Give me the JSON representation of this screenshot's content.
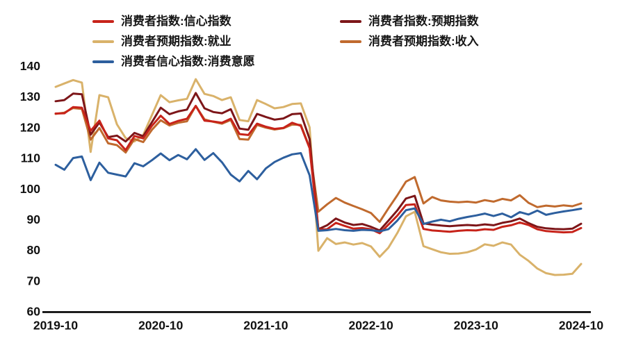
{
  "chart_data": {
    "type": "line",
    "title": "",
    "xlabel": "",
    "ylabel": "",
    "grid": false,
    "legend_position": "top",
    "background": "#ffffff",
    "axis_color": "#000000",
    "x_start": "2019-10",
    "x_end": "2024-10",
    "x_interval": "monthly",
    "points_per_series": 61,
    "x_tick_labels": [
      "2019-10",
      "2020-10",
      "2021-10",
      "2022-10",
      "2023-10",
      "2024-10"
    ],
    "x_tick_month_index": [
      0,
      12,
      24,
      36,
      48,
      60
    ],
    "y_ticks": [
      60,
      70,
      80,
      90,
      100,
      110,
      120,
      130,
      140
    ],
    "ylim": [
      60,
      143
    ],
    "series": [
      {
        "name": "消费者指数:信心指数",
        "color": "#c7231a",
        "legend_row": 1,
        "legend_col": 1,
        "z": 4,
        "values": [
          124.5,
          124.6,
          126.6,
          126.4,
          118.9,
          122.2,
          116.4,
          115.8,
          112.6,
          117.2,
          116.4,
          120.5,
          123.8,
          121.1,
          122.1,
          122.8,
          127.0,
          122.2,
          121.9,
          121.5,
          122.8,
          117.8,
          117.5,
          121.2,
          120.2,
          119.5,
          119.8,
          121.5,
          120.5,
          113.2,
          86.7,
          86.8,
          88.9,
          87.9,
          87.0,
          87.2,
          86.8,
          85.5,
          88.3,
          91.2,
          94.7,
          94.9,
          86.9,
          86.4,
          86.2,
          86.0,
          86.3,
          86.5,
          86.4,
          86.8,
          86.6,
          87.6,
          88.1,
          89.0,
          88.2,
          86.8,
          86.2,
          86.0,
          85.8,
          85.9,
          87.2
        ]
      },
      {
        "name": "消费者指数:预期指数",
        "color": "#7d1619",
        "legend_row": 1,
        "legend_col": 2,
        "z": 3,
        "values": [
          128.5,
          128.9,
          131.0,
          130.8,
          117.6,
          121.6,
          116.8,
          117.3,
          115.4,
          118.2,
          117.1,
          121.7,
          126.4,
          124.3,
          125.2,
          125.8,
          131.2,
          126.2,
          125.0,
          124.6,
          125.9,
          119.6,
          119.2,
          124.4,
          123.4,
          122.5,
          122.9,
          124.3,
          124.5,
          116.2,
          86.8,
          88.1,
          90.3,
          89.0,
          88.2,
          88.5,
          87.6,
          86.4,
          89.6,
          92.9,
          96.8,
          97.7,
          88.7,
          88.3,
          88.0,
          87.8,
          88.0,
          88.2,
          88.0,
          88.4,
          88.1,
          88.9,
          89.4,
          90.3,
          88.8,
          87.6,
          87.1,
          86.9,
          86.8,
          87.0,
          88.6
        ]
      },
      {
        "name": "消费者预期指数:就业",
        "color": "#d9b26a",
        "legend_row": 2,
        "legend_col": 1,
        "z": 1,
        "values": [
          133.2,
          134.3,
          135.4,
          134.6,
          112.0,
          130.5,
          129.8,
          121.0,
          116.5,
          115.4,
          117.5,
          124.0,
          130.5,
          128.2,
          128.8,
          129.3,
          135.7,
          130.9,
          130.2,
          128.9,
          129.8,
          122.4,
          122.0,
          128.9,
          127.6,
          126.2,
          126.6,
          127.6,
          127.8,
          120.0,
          79.8,
          83.9,
          82.0,
          82.5,
          81.8,
          82.3,
          81.2,
          77.8,
          80.8,
          85.5,
          91.0,
          92.5,
          81.3,
          80.3,
          79.3,
          78.8,
          78.9,
          79.3,
          80.2,
          81.9,
          81.4,
          82.5,
          81.8,
          78.5,
          76.5,
          74.0,
          72.5,
          71.9,
          72.0,
          72.3,
          75.5
        ]
      },
      {
        "name": "消费者预期指数:收入",
        "color": "#c06a2e",
        "legend_row": 2,
        "legend_col": 2,
        "z": 2,
        "values": [
          124.4,
          124.8,
          126.3,
          126.0,
          116.0,
          119.8,
          114.8,
          114.2,
          111.8,
          116.2,
          115.2,
          119.2,
          122.3,
          120.6,
          121.5,
          122.0,
          127.0,
          122.6,
          121.8,
          121.2,
          122.4,
          116.2,
          116.0,
          120.8,
          119.9,
          119.3,
          119.7,
          120.9,
          120.8,
          113.4,
          92.5,
          94.9,
          97.0,
          95.5,
          94.4,
          93.3,
          92.1,
          89.2,
          93.6,
          97.8,
          102.3,
          103.8,
          95.2,
          97.3,
          96.2,
          95.8,
          95.6,
          95.8,
          95.5,
          96.3,
          95.8,
          96.7,
          96.2,
          97.9,
          95.4,
          94.0,
          94.5,
          94.2,
          94.6,
          94.3,
          95.2
        ]
      },
      {
        "name": "消费者信心指数:消费意愿",
        "color": "#2d5f9e",
        "legend_row": 3,
        "legend_col": 1,
        "z": 5,
        "values": [
          107.8,
          106.2,
          110.0,
          110.5,
          102.8,
          108.5,
          105.2,
          104.6,
          104.0,
          108.3,
          107.3,
          109.3,
          111.5,
          109.3,
          111.0,
          109.6,
          112.9,
          109.4,
          111.6,
          108.6,
          104.6,
          102.4,
          105.8,
          103.1,
          106.6,
          108.7,
          110.1,
          111.2,
          111.6,
          104.4,
          86.3,
          86.5,
          86.9,
          86.5,
          86.3,
          86.6,
          86.5,
          86.1,
          86.8,
          89.6,
          93.0,
          93.6,
          88.5,
          89.3,
          89.9,
          89.4,
          90.2,
          90.8,
          91.3,
          91.9,
          91.1,
          91.9,
          90.7,
          92.4,
          91.6,
          92.9,
          91.5,
          92.1,
          92.6,
          93.0,
          93.5
        ]
      }
    ]
  }
}
